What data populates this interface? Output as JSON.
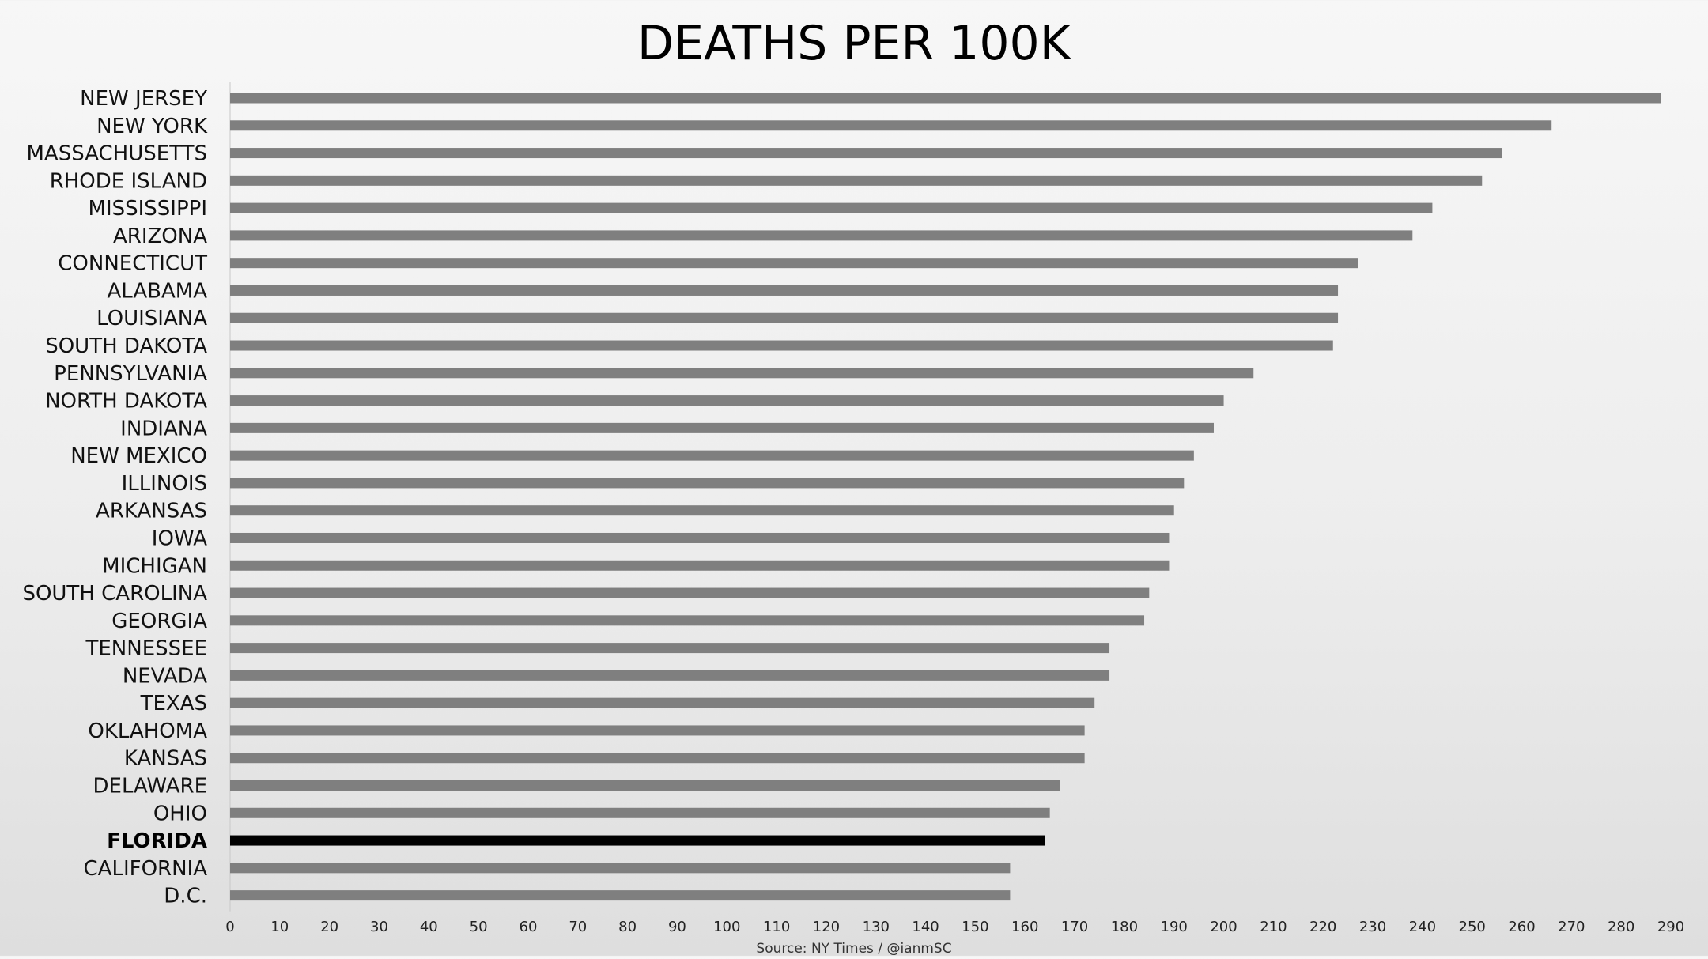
{
  "chart_data": {
    "type": "bar",
    "orientation": "horizontal",
    "title": "DEATHS PER 100K",
    "xlabel": "",
    "ylabel": "",
    "xlim": [
      0,
      290
    ],
    "x_ticks": [
      0,
      10,
      20,
      30,
      40,
      50,
      60,
      70,
      80,
      90,
      100,
      110,
      120,
      130,
      140,
      150,
      160,
      170,
      180,
      190,
      200,
      210,
      220,
      230,
      240,
      250,
      260,
      270,
      280,
      290
    ],
    "grid": false,
    "categories": [
      "NEW JERSEY",
      "NEW YORK",
      "MASSACHUSETTS",
      "RHODE ISLAND",
      "MISSISSIPPI",
      "ARIZONA",
      "CONNECTICUT",
      "ALABAMA",
      "LOUISIANA",
      "SOUTH DAKOTA",
      "PENNSYLVANIA",
      "NORTH DAKOTA",
      "INDIANA",
      "NEW MEXICO",
      "ILLINOIS",
      "ARKANSAS",
      "IOWA",
      "MICHIGAN",
      "SOUTH CAROLINA",
      "GEORGIA",
      "TENNESSEE",
      "NEVADA",
      "TEXAS",
      "OKLAHOMA",
      "KANSAS",
      "DELAWARE",
      "OHIO",
      "FLORIDA",
      "CALIFORNIA",
      "D.C."
    ],
    "values": [
      288,
      266,
      256,
      252,
      242,
      238,
      227,
      223,
      223,
      222,
      206,
      200,
      198,
      194,
      192,
      190,
      189,
      189,
      185,
      184,
      177,
      177,
      174,
      172,
      172,
      167,
      165,
      164,
      157,
      157
    ],
    "highlight": "FLORIDA",
    "colors": {
      "bar": "#7f7f7f",
      "highlight": "#000000"
    },
    "source": "Source: NY Times / @ianmSC"
  }
}
